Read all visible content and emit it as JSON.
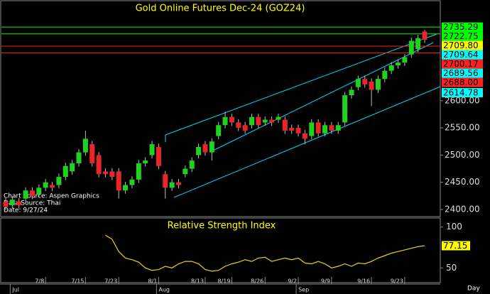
{
  "chart_data": {
    "type": "candlestick",
    "title": "Gold Online Futures Dec-24 (GOZ24)",
    "annotations": [
      "Chart Source: Aspen Graphics",
      "Data Source: Thai",
      "Date: 9/27/24"
    ],
    "period_label": "Day",
    "up_color": "#1ed21e",
    "down_color": "#e8262a",
    "open": [
      2415,
      2408,
      2415,
      2420,
      2435,
      2428,
      2440,
      2445,
      2445,
      2460,
      2470,
      2485,
      2505,
      2520,
      2500,
      2470,
      2470,
      2470,
      2435,
      2445,
      2455,
      2485,
      2500,
      2515,
      2465,
      2440,
      2450,
      2465,
      2475,
      2500,
      2520,
      2505,
      2535,
      2555,
      2570,
      2560,
      2555,
      2555,
      2570,
      2560,
      2565,
      2565,
      2565,
      2550,
      2550,
      2540,
      2535,
      2560,
      2540,
      2555,
      2545,
      2560,
      2610,
      2625,
      2640,
      2635,
      2620,
      2640,
      2655,
      2665,
      2670,
      2685,
      2695,
      2727
    ],
    "high": [
      2421,
      2424,
      2421,
      2441,
      2441,
      2446,
      2456,
      2451,
      2466,
      2486,
      2491,
      2511,
      2545,
      2526,
      2506,
      2476,
      2476,
      2476,
      2451,
      2461,
      2491,
      2496,
      2526,
      2521,
      2471,
      2456,
      2456,
      2481,
      2496,
      2521,
      2526,
      2531,
      2561,
      2580,
      2576,
      2566,
      2561,
      2576,
      2576,
      2571,
      2571,
      2576,
      2571,
      2556,
      2556,
      2546,
      2566,
      2566,
      2561,
      2561,
      2561,
      2616,
      2626,
      2646,
      2646,
      2641,
      2646,
      2661,
      2671,
      2676,
      2686,
      2716,
      2721,
      2730
    ],
    "low": [
      2399,
      2402,
      2402,
      2414,
      2419,
      2422,
      2434,
      2434,
      2439,
      2454,
      2464,
      2479,
      2499,
      2479,
      2459,
      2459,
      2454,
      2420,
      2429,
      2439,
      2449,
      2479,
      2494,
      2474,
      2420,
      2434,
      2439,
      2459,
      2469,
      2494,
      2499,
      2490,
      2529,
      2549,
      2554,
      2544,
      2539,
      2549,
      2549,
      2554,
      2554,
      2559,
      2539,
      2539,
      2534,
      2520,
      2529,
      2534,
      2534,
      2539,
      2539,
      2554,
      2604,
      2619,
      2624,
      2590,
      2614,
      2634,
      2649,
      2659,
      2664,
      2679,
      2689,
      2706
    ],
    "close": [
      2405,
      2418,
      2408,
      2435,
      2425,
      2440,
      2450,
      2440,
      2460,
      2480,
      2485,
      2505,
      2530,
      2485,
      2465,
      2465,
      2460,
      2435,
      2445,
      2455,
      2485,
      2490,
      2520,
      2480,
      2440,
      2450,
      2445,
      2475,
      2490,
      2515,
      2505,
      2525,
      2555,
      2570,
      2560,
      2550,
      2545,
      2570,
      2555,
      2565,
      2560,
      2570,
      2545,
      2545,
      2540,
      2530,
      2560,
      2540,
      2555,
      2545,
      2555,
      2610,
      2620,
      2640,
      2630,
      2620,
      2640,
      2655,
      2665,
      2670,
      2680,
      2710,
      2715,
      2712
    ],
    "ylim": [
      2387,
      2785
    ],
    "yticks": [
      {
        "value": 2400,
        "label": "2400.00"
      },
      {
        "value": 2450,
        "label": "2450.00"
      },
      {
        "value": 2500,
        "label": "2500.00"
      },
      {
        "value": 2550,
        "label": "2550.00"
      },
      {
        "value": 2600,
        "label": "2600.00"
      }
    ],
    "xticks": [
      {
        "value": 6,
        "label": "7/8"
      },
      {
        "value": 12,
        "label": "7/15"
      },
      {
        "value": 17,
        "label": "7/23"
      },
      {
        "value": 23,
        "label": "8/1"
      },
      {
        "value": 30,
        "label": "8/13"
      },
      {
        "value": 34,
        "label": "8/19"
      },
      {
        "value": 39,
        "label": "8/26"
      },
      {
        "value": 44,
        "label": "9/2"
      },
      {
        "value": 49,
        "label": "9/9"
      },
      {
        "value": 55,
        "label": "9/16"
      },
      {
        "value": 60,
        "label": "9/23"
      }
    ],
    "months": [
      {
        "value": 1,
        "label": "Jul"
      },
      {
        "value": 23,
        "label": "Aug"
      },
      {
        "value": 44,
        "label": "Sep"
      }
    ],
    "price_labels": [
      {
        "value": 2735.29,
        "label": "2735.29",
        "color": "#00ff00",
        "line": true
      },
      {
        "value": 2722.75,
        "label": "2722.75",
        "color": "#00ff00",
        "line": true
      },
      {
        "value": 2709.8,
        "label": "2709.80",
        "color": "#ffff00",
        "line": false
      },
      {
        "value": 2709.64,
        "label": "2709.64",
        "color": "#00ffff",
        "line": false
      },
      {
        "value": 2700.17,
        "label": "2700.17",
        "color": "#ff2020",
        "line": true
      },
      {
        "value": 2689.56,
        "label": "2689.56",
        "color": "#00ffff",
        "line": false
      },
      {
        "value": 2688.0,
        "label": "2688.00",
        "color": "#ff2020",
        "line": true
      },
      {
        "value": 2614.78,
        "label": "2614.78",
        "color": "#00ffff",
        "line": false
      }
    ],
    "rsi": {
      "title": "Relative Strength Index",
      "color": "#e6d21e",
      "values": [
        null,
        null,
        null,
        null,
        null,
        null,
        null,
        null,
        null,
        null,
        null,
        null,
        null,
        null,
        null,
        90,
        85,
        70,
        62,
        60,
        57,
        50,
        47,
        48,
        52,
        50,
        55,
        58,
        58,
        55,
        48,
        46,
        47,
        52,
        55,
        57,
        60,
        58,
        62,
        63,
        58,
        60,
        62,
        60,
        62,
        56,
        55,
        58,
        55,
        50,
        52,
        55,
        52,
        56,
        55,
        58,
        62,
        65,
        68,
        70,
        72,
        74,
        76,
        77.15
      ],
      "ylim": [
        32,
        111
      ],
      "yticks": [
        50,
        100
      ],
      "last_label": {
        "value": 77.15,
        "label": "77.15",
        "color": "#ffff00"
      }
    }
  }
}
